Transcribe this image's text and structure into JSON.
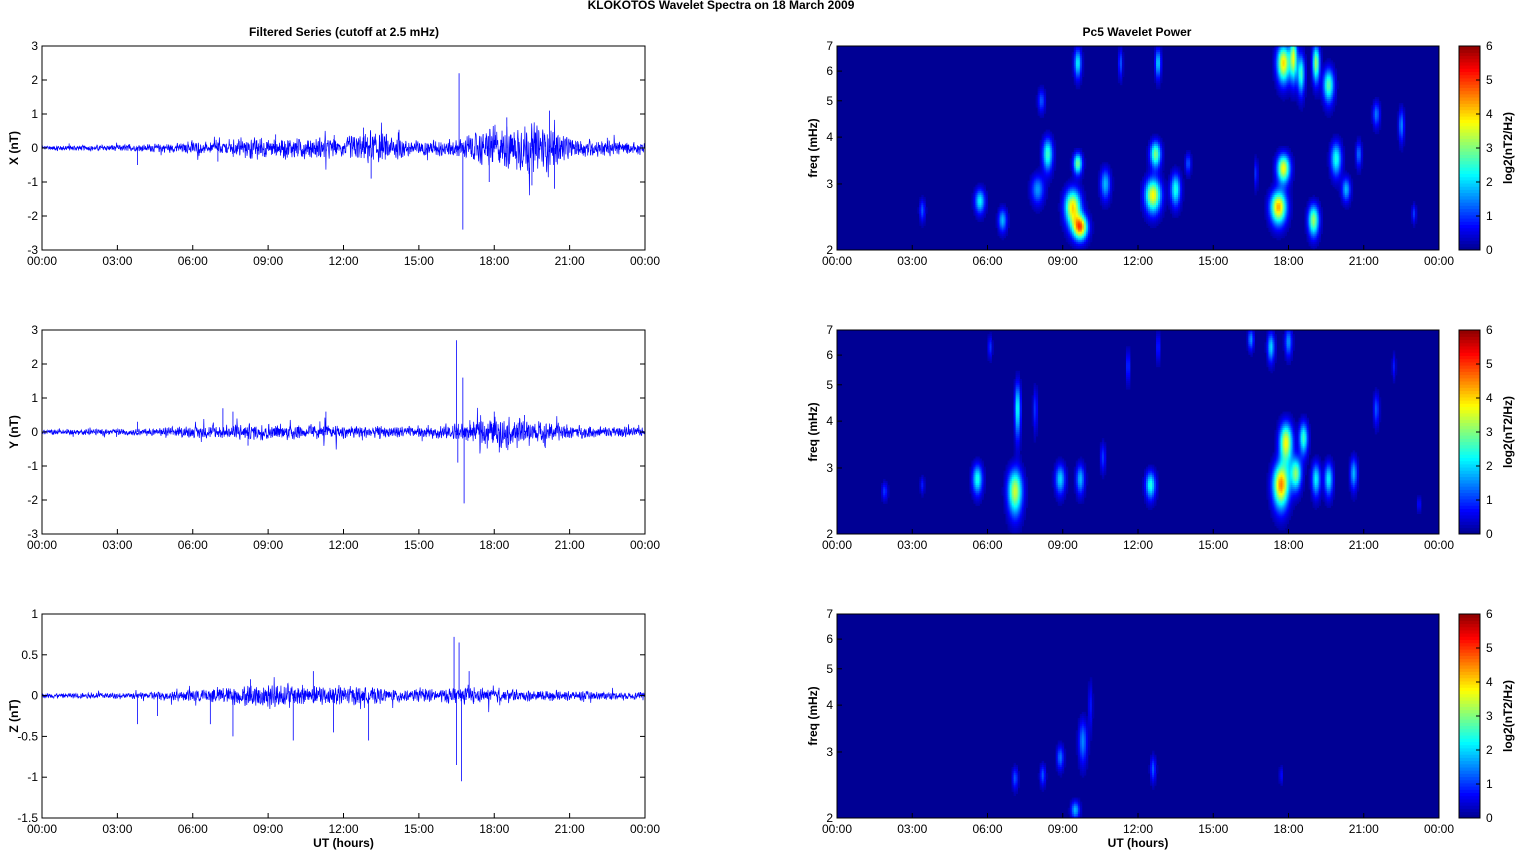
{
  "figure": {
    "title": "KLOKOTOS Wavelet Spectra on 18 March     2009",
    "left_title": "Filtered Series (cutoff at 2.5 mHz)",
    "right_title": "Pc5 Wavelet Power"
  },
  "x_ticks": [
    "00:00",
    "03:00",
    "06:00",
    "09:00",
    "12:00",
    "15:00",
    "18:00",
    "21:00",
    "00:00"
  ],
  "x_label": "UT (hours)",
  "colorbar": {
    "label": "log2(nT2/Hz)",
    "ticks": [
      "0",
      "1",
      "2",
      "3",
      "4",
      "5",
      "6"
    ],
    "range": [
      0,
      6
    ]
  },
  "colors": {
    "trace": "#0000ff",
    "background_low": "#00008f"
  },
  "chart_data": [
    {
      "type": "line",
      "name": "X",
      "ylabel": "X (nT)",
      "xlim": [
        0,
        24
      ],
      "ylim": [
        -3,
        3
      ],
      "y_ticks": [
        "-3",
        "-2",
        "-1",
        "0",
        "1",
        "2",
        "3"
      ],
      "noise_envelope": [
        [
          0,
          0.08
        ],
        [
          4,
          0.1
        ],
        [
          7,
          0.2
        ],
        [
          9.5,
          0.35
        ],
        [
          12,
          0.3
        ],
        [
          13,
          0.5
        ],
        [
          15,
          0.2
        ],
        [
          16.5,
          0.3
        ],
        [
          18,
          0.6
        ],
        [
          20,
          0.7
        ],
        [
          21,
          0.3
        ],
        [
          24,
          0.15
        ]
      ],
      "spikes": [
        [
          3.8,
          -0.5
        ],
        [
          7,
          -0.4
        ],
        [
          9.3,
          0.4
        ],
        [
          12.8,
          0.6
        ],
        [
          13.1,
          -0.9
        ],
        [
          16.6,
          2.2
        ],
        [
          16.75,
          -2.4
        ],
        [
          17.8,
          -1.0
        ],
        [
          18.5,
          0.9
        ],
        [
          19.5,
          -1.1
        ],
        [
          20.2,
          1.1
        ],
        [
          20.4,
          -1.2
        ],
        [
          22.5,
          0.3
        ]
      ]
    },
    {
      "type": "heatmap",
      "name": "X",
      "ylabel": "freq (mHz)",
      "xlim": [
        0,
        24
      ],
      "ylim": [
        2,
        7
      ],
      "yscale": "log",
      "y_ticks": [
        "2",
        "3",
        "4",
        "5",
        "6",
        "7"
      ],
      "blobs": [
        {
          "t": 3.4,
          "f": 2.55,
          "dt": 0.08,
          "df": 0.12,
          "a": 1.2
        },
        {
          "t": 5.7,
          "f": 2.7,
          "dt": 0.14,
          "df": 0.14,
          "a": 2.2
        },
        {
          "t": 6.6,
          "f": 2.4,
          "dt": 0.12,
          "df": 0.12,
          "a": 1.8
        },
        {
          "t": 8.0,
          "f": 2.9,
          "dt": 0.18,
          "df": 0.18,
          "a": 1.6
        },
        {
          "t": 8.15,
          "f": 5.0,
          "dt": 0.1,
          "df": 0.25,
          "a": 1.2
        },
        {
          "t": 8.4,
          "f": 3.6,
          "dt": 0.14,
          "df": 0.25,
          "a": 2.6
        },
        {
          "t": 9.4,
          "f": 2.6,
          "dt": 0.22,
          "df": 0.2,
          "a": 4.0
        },
        {
          "t": 9.7,
          "f": 2.3,
          "dt": 0.2,
          "df": 0.12,
          "a": 4.5
        },
        {
          "t": 9.6,
          "f": 3.4,
          "dt": 0.12,
          "df": 0.15,
          "a": 3.0
        },
        {
          "t": 9.6,
          "f": 6.3,
          "dt": 0.1,
          "df": 0.4,
          "a": 2.2
        },
        {
          "t": 10.7,
          "f": 3.0,
          "dt": 0.14,
          "df": 0.2,
          "a": 1.8
        },
        {
          "t": 11.3,
          "f": 6.3,
          "dt": 0.06,
          "df": 0.4,
          "a": 1.2
        },
        {
          "t": 12.6,
          "f": 2.8,
          "dt": 0.22,
          "df": 0.2,
          "a": 3.8
        },
        {
          "t": 12.7,
          "f": 3.6,
          "dt": 0.15,
          "df": 0.2,
          "a": 3.0
        },
        {
          "t": 12.8,
          "f": 6.3,
          "dt": 0.08,
          "df": 0.4,
          "a": 2.0
        },
        {
          "t": 13.5,
          "f": 2.9,
          "dt": 0.14,
          "df": 0.2,
          "a": 2.4
        },
        {
          "t": 14.0,
          "f": 3.4,
          "dt": 0.08,
          "df": 0.15,
          "a": 1.2
        },
        {
          "t": 17.6,
          "f": 2.6,
          "dt": 0.22,
          "df": 0.18,
          "a": 4.3
        },
        {
          "t": 17.8,
          "f": 3.3,
          "dt": 0.18,
          "df": 0.2,
          "a": 3.8
        },
        {
          "t": 17.8,
          "f": 6.3,
          "dt": 0.18,
          "df": 0.5,
          "a": 4.0
        },
        {
          "t": 18.2,
          "f": 6.5,
          "dt": 0.1,
          "df": 0.6,
          "a": 3.4
        },
        {
          "t": 18.5,
          "f": 5.9,
          "dt": 0.1,
          "df": 0.5,
          "a": 2.6
        },
        {
          "t": 19.0,
          "f": 2.4,
          "dt": 0.15,
          "df": 0.16,
          "a": 3.2
        },
        {
          "t": 19.1,
          "f": 6.3,
          "dt": 0.1,
          "df": 0.5,
          "a": 3.2
        },
        {
          "t": 19.6,
          "f": 5.5,
          "dt": 0.15,
          "df": 0.4,
          "a": 2.8
        },
        {
          "t": 19.9,
          "f": 3.5,
          "dt": 0.15,
          "df": 0.25,
          "a": 2.4
        },
        {
          "t": 20.3,
          "f": 2.9,
          "dt": 0.12,
          "df": 0.15,
          "a": 1.8
        },
        {
          "t": 20.8,
          "f": 3.6,
          "dt": 0.08,
          "df": 0.2,
          "a": 1.4
        },
        {
          "t": 21.5,
          "f": 4.6,
          "dt": 0.1,
          "df": 0.25,
          "a": 1.4
        },
        {
          "t": 22.5,
          "f": 4.3,
          "dt": 0.08,
          "df": 0.3,
          "a": 1.5
        },
        {
          "t": 23.0,
          "f": 2.5,
          "dt": 0.06,
          "df": 0.1,
          "a": 1.0
        },
        {
          "t": 16.7,
          "f": 3.2,
          "dt": 0.05,
          "df": 0.2,
          "a": 1.0
        }
      ]
    },
    {
      "type": "line",
      "name": "Y",
      "ylabel": "Y (nT)",
      "xlim": [
        0,
        24
      ],
      "ylim": [
        -3,
        3
      ],
      "y_ticks": [
        "-3",
        "-2",
        "-1",
        "0",
        "1",
        "2",
        "3"
      ],
      "noise_envelope": [
        [
          0,
          0.08
        ],
        [
          4,
          0.1
        ],
        [
          7,
          0.2
        ],
        [
          9.5,
          0.25
        ],
        [
          12,
          0.2
        ],
        [
          15,
          0.15
        ],
        [
          16.5,
          0.25
        ],
        [
          18,
          0.45
        ],
        [
          20,
          0.3
        ],
        [
          21,
          0.2
        ],
        [
          24,
          0.12
        ]
      ],
      "spikes": [
        [
          3.8,
          0.3
        ],
        [
          7.2,
          0.7
        ],
        [
          7.6,
          0.6
        ],
        [
          8.2,
          -0.4
        ],
        [
          11.3,
          0.6
        ],
        [
          16.5,
          2.7
        ],
        [
          16.55,
          -0.9
        ],
        [
          16.75,
          1.6
        ],
        [
          16.8,
          -2.1
        ],
        [
          18.0,
          0.6
        ],
        [
          18.2,
          -0.6
        ],
        [
          19.2,
          0.5
        ]
      ]
    },
    {
      "type": "heatmap",
      "name": "Y",
      "ylabel": "freq (mHz)",
      "xlim": [
        0,
        24
      ],
      "ylim": [
        2,
        7
      ],
      "yscale": "log",
      "y_ticks": [
        "2",
        "3",
        "4",
        "5",
        "6",
        "7"
      ],
      "blobs": [
        {
          "t": 1.9,
          "f": 2.6,
          "dt": 0.08,
          "df": 0.1,
          "a": 1.0
        },
        {
          "t": 3.4,
          "f": 2.7,
          "dt": 0.06,
          "df": 0.1,
          "a": 0.8
        },
        {
          "t": 5.6,
          "f": 2.8,
          "dt": 0.14,
          "df": 0.18,
          "a": 2.4
        },
        {
          "t": 6.1,
          "f": 6.3,
          "dt": 0.06,
          "df": 0.3,
          "a": 1.0
        },
        {
          "t": 7.1,
          "f": 2.6,
          "dt": 0.2,
          "df": 0.25,
          "a": 3.5
        },
        {
          "t": 7.2,
          "f": 4.3,
          "dt": 0.08,
          "df": 0.5,
          "a": 2.4
        },
        {
          "t": 7.9,
          "f": 4.3,
          "dt": 0.06,
          "df": 0.4,
          "a": 1.0
        },
        {
          "t": 8.9,
          "f": 2.8,
          "dt": 0.14,
          "df": 0.18,
          "a": 2.0
        },
        {
          "t": 9.7,
          "f": 2.8,
          "dt": 0.12,
          "df": 0.18,
          "a": 1.8
        },
        {
          "t": 10.6,
          "f": 3.2,
          "dt": 0.08,
          "df": 0.2,
          "a": 1.0
        },
        {
          "t": 11.6,
          "f": 5.6,
          "dt": 0.06,
          "df": 0.4,
          "a": 1.0
        },
        {
          "t": 12.5,
          "f": 2.7,
          "dt": 0.14,
          "df": 0.16,
          "a": 2.4
        },
        {
          "t": 12.8,
          "f": 6.3,
          "dt": 0.05,
          "df": 0.4,
          "a": 1.0
        },
        {
          "t": 16.5,
          "f": 6.6,
          "dt": 0.08,
          "df": 0.3,
          "a": 1.6
        },
        {
          "t": 17.7,
          "f": 2.7,
          "dt": 0.22,
          "df": 0.25,
          "a": 4.5
        },
        {
          "t": 17.9,
          "f": 3.5,
          "dt": 0.18,
          "df": 0.3,
          "a": 3.8
        },
        {
          "t": 18.3,
          "f": 2.9,
          "dt": 0.15,
          "df": 0.2,
          "a": 3.0
        },
        {
          "t": 18.6,
          "f": 3.6,
          "dt": 0.12,
          "df": 0.25,
          "a": 2.6
        },
        {
          "t": 19.1,
          "f": 2.8,
          "dt": 0.12,
          "df": 0.2,
          "a": 2.2
        },
        {
          "t": 17.3,
          "f": 6.3,
          "dt": 0.1,
          "df": 0.4,
          "a": 2.0
        },
        {
          "t": 18.0,
          "f": 6.5,
          "dt": 0.1,
          "df": 0.4,
          "a": 1.6
        },
        {
          "t": 19.6,
          "f": 2.8,
          "dt": 0.12,
          "df": 0.2,
          "a": 2.2
        },
        {
          "t": 20.6,
          "f": 2.9,
          "dt": 0.1,
          "df": 0.2,
          "a": 1.8
        },
        {
          "t": 21.5,
          "f": 4.3,
          "dt": 0.08,
          "df": 0.3,
          "a": 1.2
        },
        {
          "t": 23.2,
          "f": 2.4,
          "dt": 0.05,
          "df": 0.08,
          "a": 0.8
        },
        {
          "t": 22.2,
          "f": 5.6,
          "dt": 0.05,
          "df": 0.3,
          "a": 0.8
        }
      ]
    },
    {
      "type": "line",
      "name": "Z",
      "ylabel": "Z (nT)",
      "xlim": [
        0,
        24
      ],
      "ylim": [
        -1.5,
        1
      ],
      "y_ticks": [
        "-1.5",
        "-1",
        "-0.5",
        "0",
        "0.5",
        "1"
      ],
      "noise_envelope": [
        [
          0,
          0.03
        ],
        [
          4,
          0.04
        ],
        [
          7,
          0.1
        ],
        [
          9.5,
          0.15
        ],
        [
          12,
          0.12
        ],
        [
          15,
          0.07
        ],
        [
          16.5,
          0.1
        ],
        [
          18,
          0.08
        ],
        [
          21,
          0.06
        ],
        [
          24,
          0.04
        ]
      ],
      "spikes": [
        [
          3.8,
          -0.35
        ],
        [
          4.6,
          -0.25
        ],
        [
          6.7,
          -0.35
        ],
        [
          7.6,
          -0.5
        ],
        [
          8.3,
          0.2
        ],
        [
          10,
          -0.55
        ],
        [
          10.8,
          0.3
        ],
        [
          11.6,
          -0.45
        ],
        [
          13.0,
          -0.55
        ],
        [
          16.4,
          0.72
        ],
        [
          16.5,
          -0.85
        ],
        [
          16.6,
          0.65
        ],
        [
          16.7,
          -1.05
        ],
        [
          17.0,
          0.3
        ]
      ]
    },
    {
      "type": "heatmap",
      "name": "Z",
      "ylabel": "freq (mHz)",
      "xlim": [
        0,
        24
      ],
      "ylim": [
        2,
        7
      ],
      "yscale": "log",
      "y_ticks": [
        "2",
        "3",
        "4",
        "5",
        "6",
        "7"
      ],
      "blobs": [
        {
          "t": 7.1,
          "f": 2.55,
          "dt": 0.08,
          "df": 0.12,
          "a": 1.2
        },
        {
          "t": 8.2,
          "f": 2.6,
          "dt": 0.08,
          "df": 0.12,
          "a": 1.2
        },
        {
          "t": 8.9,
          "f": 2.9,
          "dt": 0.1,
          "df": 0.15,
          "a": 1.4
        },
        {
          "t": 9.5,
          "f": 2.1,
          "dt": 0.12,
          "df": 0.08,
          "a": 1.8
        },
        {
          "t": 9.8,
          "f": 3.2,
          "dt": 0.12,
          "df": 0.3,
          "a": 1.5
        },
        {
          "t": 10.1,
          "f": 4.0,
          "dt": 0.06,
          "df": 0.4,
          "a": 0.8
        },
        {
          "t": 12.6,
          "f": 2.7,
          "dt": 0.08,
          "df": 0.15,
          "a": 1.2
        },
        {
          "t": 17.7,
          "f": 2.6,
          "dt": 0.05,
          "df": 0.1,
          "a": 0.7
        }
      ]
    }
  ]
}
